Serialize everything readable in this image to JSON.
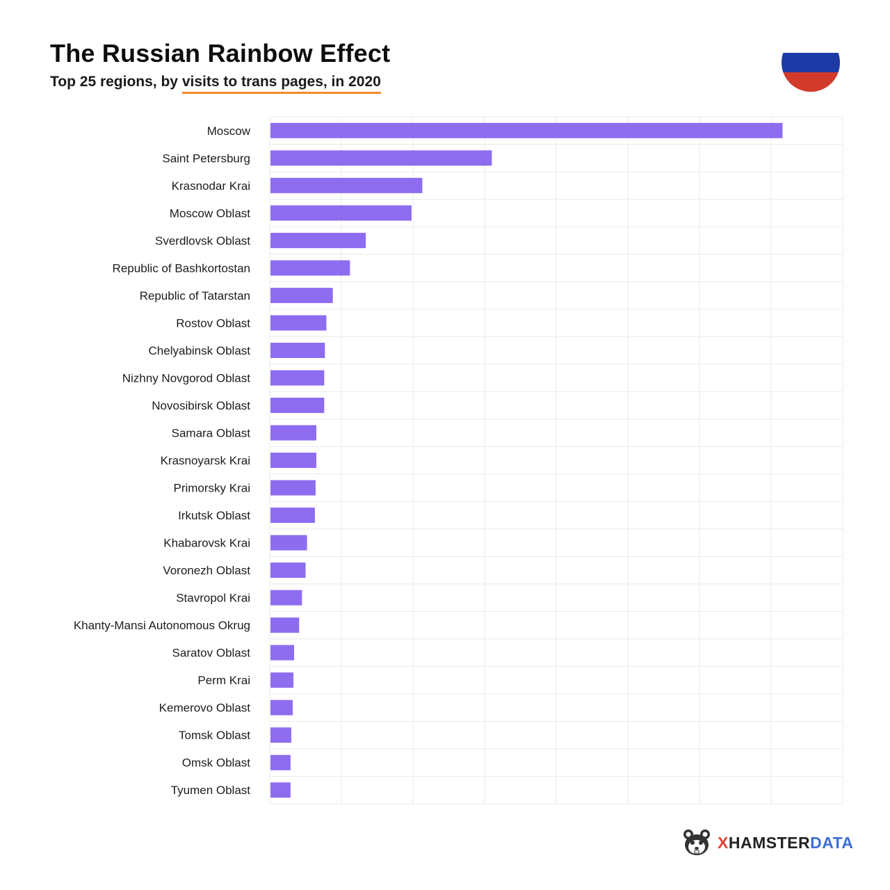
{
  "header": {
    "title": "The Russian Rainbow Effect",
    "subtitle_start": "Top 25 regions, by ",
    "subtitle_highlight": "visits to trans pages, in 2020"
  },
  "brand": {
    "x": "X",
    "hamster": "HAMSTER",
    "data": "DATA"
  },
  "colors": {
    "bar": "#8e6cf0",
    "grid": "#e9e9e9",
    "highlight_underline": "#f28a2e",
    "flag_white": "#ffffff",
    "flag_blue": "#1d3aa6",
    "flag_red": "#d23a2b"
  },
  "chart_data": {
    "type": "bar",
    "orientation": "horizontal",
    "title": "The Russian Rainbow Effect",
    "subtitle": "Top 25 regions, by visits to trans pages, in 2020",
    "xlabel": "",
    "ylabel": "",
    "xlim": [
      0,
      8
    ],
    "grid": true,
    "categories": [
      "Moscow",
      "Saint Petersburg",
      "Krasnodar Krai",
      "Moscow Oblast",
      "Sverdlovsk Oblast",
      "Republic of Bashkortostan",
      "Republic of Tatarstan",
      "Rostov Oblast",
      "Chelyabinsk Oblast",
      "Nizhny Novgorod Oblast",
      "Novosibirsk Oblast",
      "Samara Oblast",
      "Krasnoyarsk Krai",
      "Primorsky Krai",
      "Irkutsk Oblast",
      "Khabarovsk Krai",
      "Voronezh Oblast",
      "Stavropol Krai",
      "Khanty-Mansi Autonomous Okrug",
      "Saratov Oblast",
      "Perm Krai",
      "Kemerovo Oblast",
      "Tomsk Oblast",
      "Omsk Oblast",
      "Tyumen Oblast"
    ],
    "values": [
      7.16,
      3.1,
      2.13,
      1.98,
      1.34,
      1.12,
      0.88,
      0.79,
      0.77,
      0.76,
      0.76,
      0.65,
      0.65,
      0.64,
      0.63,
      0.52,
      0.5,
      0.45,
      0.41,
      0.34,
      0.33,
      0.32,
      0.3,
      0.29,
      0.29
    ]
  }
}
